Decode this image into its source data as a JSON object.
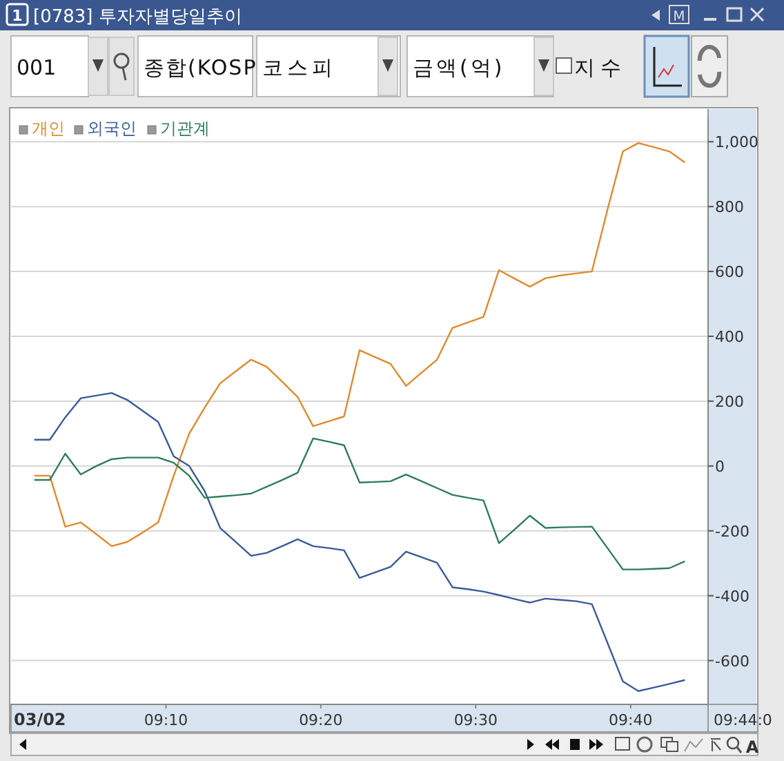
{
  "chart_data": {
    "type": "line",
    "title": "[0783] 투자자별당일추이",
    "annotations": [
      "001",
      "종합(KOSP",
      "코스피",
      "금액(억)",
      "지수",
      "03/02",
      "09:44:0",
      "1",
      "M",
      "A"
    ],
    "x": [
      9.025,
      9.0417,
      9.0583,
      9.075,
      9.0917,
      9.1083,
      9.125,
      9.1417,
      9.1583,
      9.175,
      9.1917,
      9.2083,
      9.225,
      9.2417,
      9.2583,
      9.275,
      9.2917,
      9.3083,
      9.325,
      9.3417,
      9.3583,
      9.375,
      9.3917,
      9.4083,
      9.425,
      9.4417,
      9.4583,
      9.475,
      9.4917,
      9.5083,
      9.525,
      9.5417,
      9.5583,
      9.575,
      9.5917,
      9.6083,
      9.625,
      9.6417,
      9.6583,
      9.675,
      9.6917,
      9.7083,
      9.725
    ],
    "series": [
      {
        "name": "개인",
        "color": "#e08a2c",
        "values": [
          -30,
          -30,
          -187,
          -174,
          -210,
          -247,
          -234,
          -205,
          -174,
          -30,
          100,
          180,
          255,
          292,
          328,
          306,
          260,
          213,
          123,
          138,
          153,
          357,
          336,
          315,
          247,
          288,
          328,
          426,
          443,
          460,
          604,
          578,
          553,
          579,
          588,
          594,
          600,
          790,
          970,
          996,
          983,
          970,
          936
        ]
      },
      {
        "name": "외국인",
        "color": "#3a5a9a",
        "values": [
          81,
          81,
          150,
          209,
          217,
          225,
          204,
          170,
          136,
          30,
          0,
          -77,
          -191,
          -234,
          -277,
          -268,
          -247,
          -226,
          -247,
          -253,
          -260,
          -345,
          -328,
          -311,
          -264,
          -281,
          -298,
          -374,
          -380,
          -387,
          -398,
          -410,
          -421,
          -409,
          -413,
          -417,
          -426,
          -545,
          -664,
          -694,
          -683,
          -672,
          -660
        ]
      },
      {
        "name": "기관계",
        "color": "#2e7d5a",
        "values": [
          -43,
          -43,
          38,
          -26,
          0,
          21,
          26,
          26,
          26,
          10,
          -30,
          -98,
          -94,
          -90,
          -85,
          -64,
          -43,
          -21,
          85,
          75,
          64,
          -51,
          -49,
          -47,
          -26,
          -47,
          -68,
          -89,
          -98,
          -106,
          -238,
          -196,
          -153,
          -191,
          -189,
          -188,
          -187,
          -253,
          -319,
          -319,
          -317,
          -315,
          -294
        ]
      }
    ],
    "xlim": [
      9,
      9.75
    ],
    "xticks": [
      {
        "value": 9.1667,
        "label": "09:10"
      },
      {
        "value": 9.3333,
        "label": "09:20"
      },
      {
        "value": 9.5,
        "label": "09:30"
      },
      {
        "value": 9.6667,
        "label": "09:40"
      }
    ],
    "ylim": [
      -735,
      1075
    ],
    "yticks": [
      -600,
      -400,
      -200,
      0,
      200,
      400,
      600,
      800,
      {
        "value": 1000,
        "label": "1,000"
      }
    ],
    "grid": "y",
    "legend": "top left",
    "marker": "none",
    "line_style": "solid"
  }
}
